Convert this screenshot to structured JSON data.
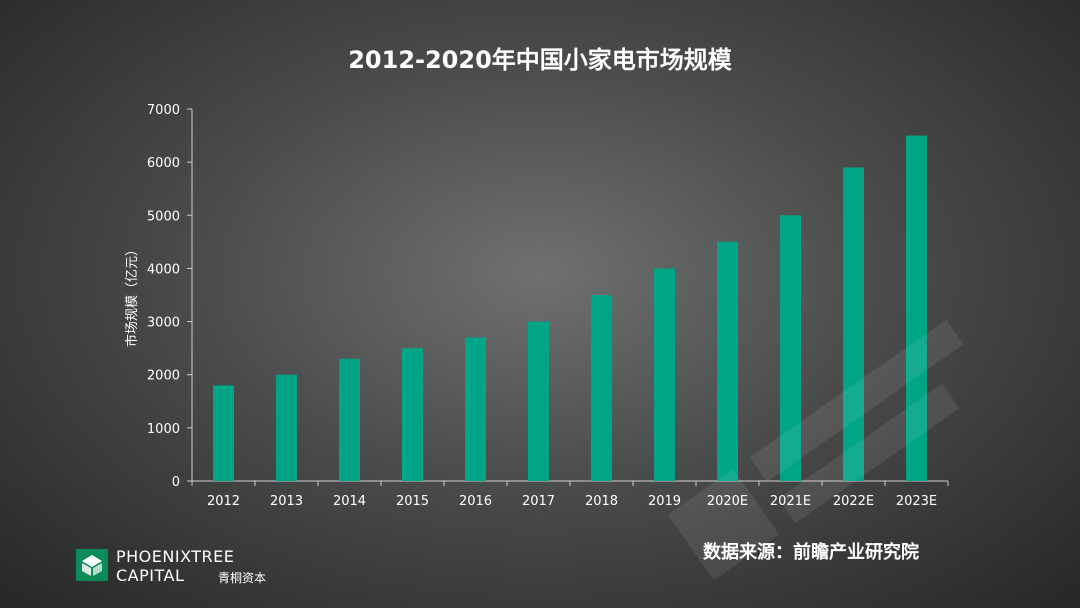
{
  "chart_data": {
    "type": "bar",
    "title": "2012-2020年中国小家电市场规模",
    "ylabel": "市场规模（亿元）",
    "xlabel": "",
    "ylim": [
      0,
      7000
    ],
    "yticks": [
      0,
      1000,
      2000,
      3000,
      4000,
      5000,
      6000,
      7000
    ],
    "categories": [
      "2012",
      "2013",
      "2014",
      "2015",
      "2016",
      "2017",
      "2018",
      "2019",
      "2020E",
      "2021E",
      "2022E",
      "2023E"
    ],
    "values": [
      1800,
      2000,
      2300,
      2500,
      2700,
      3000,
      3500,
      4000,
      4500,
      5000,
      5900,
      6500
    ],
    "bar_color": "#00a487",
    "grid": false
  },
  "footer": {
    "source": "数据来源：前瞻产业研究院",
    "brand_line1": "PHOENIXTREE",
    "brand_line2": "CAPITAL",
    "brand_cn": "青桐资本"
  },
  "colors": {
    "bar": "#00a487",
    "brand_logo": "#0b8a5a"
  }
}
